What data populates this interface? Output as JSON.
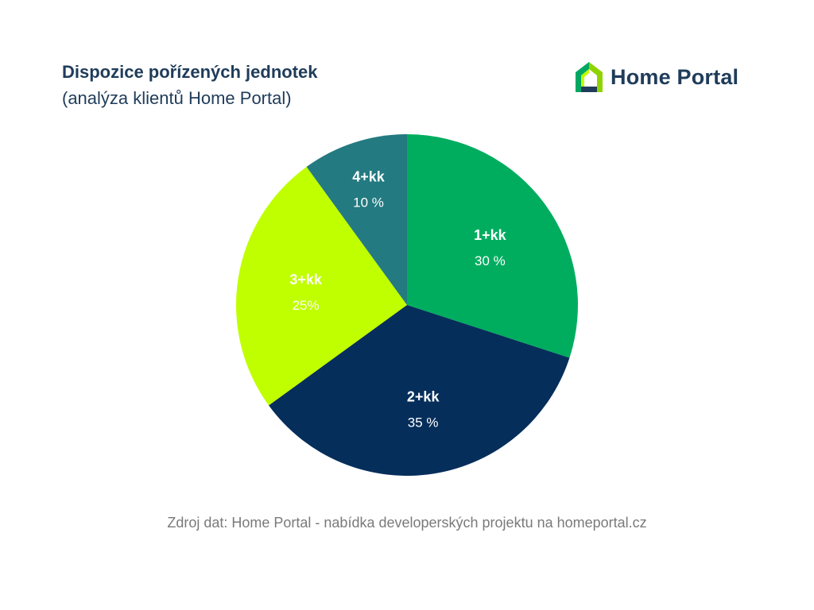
{
  "header": {
    "title": "Dispozice pořízených jednotek",
    "subtitle": "(analýza klientů Home Portal)"
  },
  "logo": {
    "text": "Home Portal",
    "icon": "house-logo-icon",
    "colors": [
      "#00a862",
      "#1f3c5a",
      "#bfff00"
    ]
  },
  "chart_data": {
    "type": "pie",
    "title": "Dispozice pořízených jednotek",
    "subtitle": "(analýza klientů Home Portal)",
    "start_angle": "12 o'clock",
    "direction": "clockwise",
    "slices": [
      {
        "label": "1+kk",
        "value": 30,
        "value_label": "30 %",
        "color": "#00ad5f"
      },
      {
        "label": "2+kk",
        "value": 35,
        "value_label": "35 %",
        "color": "#062e5b"
      },
      {
        "label": "3+kk",
        "value": 25,
        "value_label": "25%",
        "color": "#c0ff00"
      },
      {
        "label": "4+kk",
        "value": 10,
        "value_label": "10 %",
        "color": "#237a80"
      }
    ]
  },
  "footer": {
    "source": "Zdroj dat: Home Portal - nabídka developerských projektu na homeportal.cz"
  }
}
